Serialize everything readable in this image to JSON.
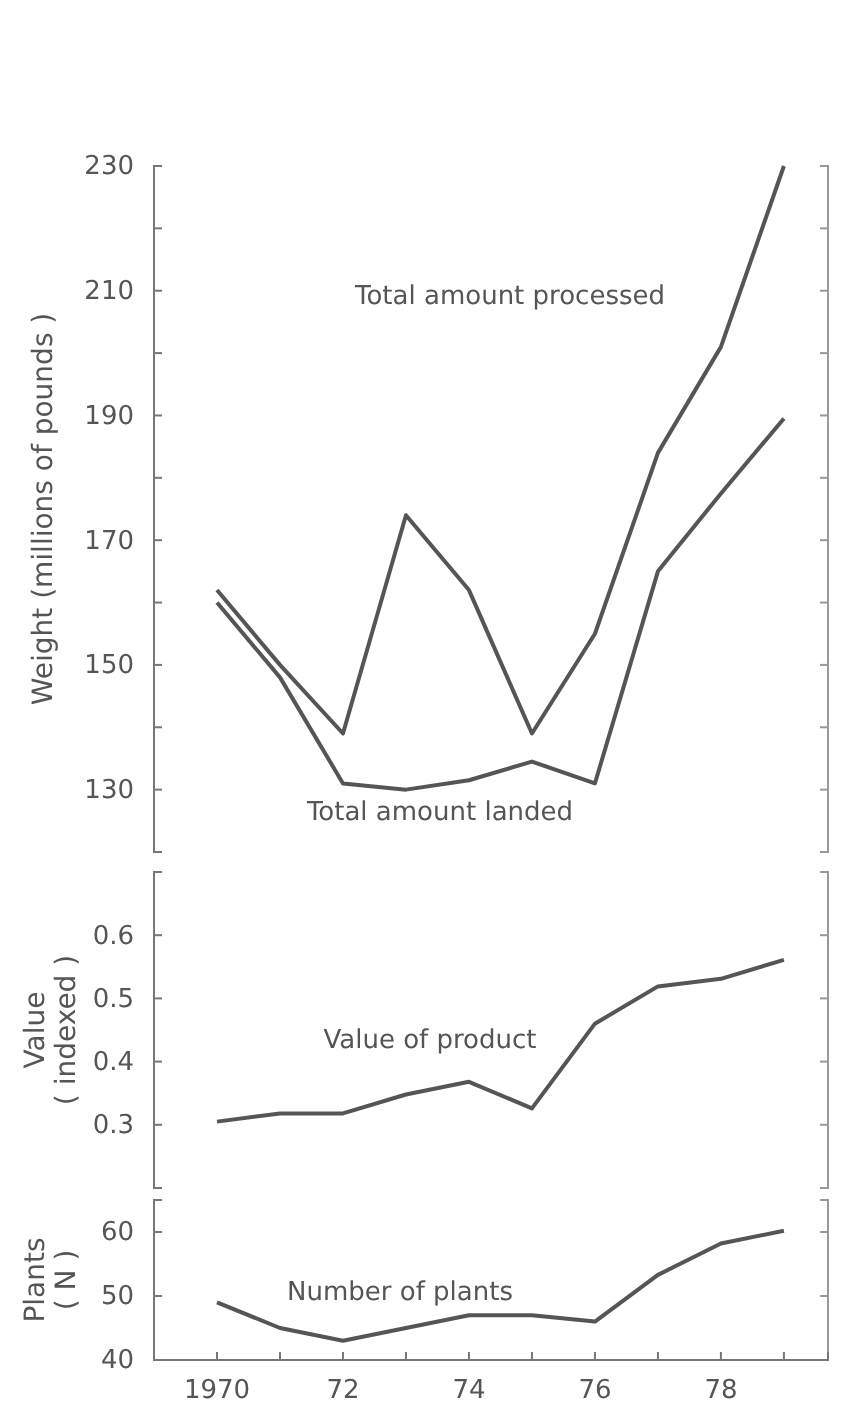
{
  "chart_data": [
    {
      "type": "line",
      "ylabel": "Weight (millions of pounds )",
      "x": [
        1970,
        1971,
        1972,
        1973,
        1974,
        1975,
        1976,
        1977,
        1978,
        1979
      ],
      "xlim": [
        1969,
        1979.7
      ],
      "ylim": [
        120,
        230
      ],
      "yticks": [
        {
          "value": 120,
          "label": null
        },
        130,
        {
          "value": 140,
          "label": null
        },
        150,
        {
          "value": 160,
          "label": null
        },
        170,
        {
          "value": 180,
          "label": null
        },
        190,
        {
          "value": 200,
          "label": null
        },
        210,
        {
          "value": 220,
          "label": null
        },
        230
      ],
      "tick_labels": "y",
      "grid": false,
      "series": [
        {
          "name": "Total amount processed",
          "color": "#555555",
          "values": [
            162,
            150,
            139,
            174,
            162,
            139,
            155,
            184,
            201,
            230
          ]
        },
        {
          "name": "Total amount landed",
          "color": "#555555",
          "values": [
            160,
            148,
            131,
            130,
            131.5,
            134.5,
            131,
            165,
            177.5,
            189.5
          ]
        }
      ]
    },
    {
      "type": "line",
      "ylabel": "Value\n( indexed )",
      "x": [
        1970,
        1971,
        1972,
        1973,
        1974,
        1975,
        1976,
        1977,
        1978,
        1979
      ],
      "xlim": [
        1969,
        1979.7
      ],
      "ylim": [
        0.2,
        0.7
      ],
      "yticks": [
        {
          "value": 0.2,
          "label": null
        },
        0.3,
        0.4,
        0.5,
        0.6,
        {
          "value": 0.7,
          "label": null
        }
      ],
      "tick_labels": "y",
      "grid": false,
      "series": [
        {
          "name": "Value of product",
          "color": "#555555",
          "values": [
            0.305,
            0.318,
            0.318,
            0.348,
            0.368,
            0.326,
            0.46,
            0.519,
            0.531,
            0.561
          ]
        }
      ]
    },
    {
      "type": "line",
      "ylabel": "Plants\n( N )",
      "x": [
        1970,
        1971,
        1972,
        1973,
        1974,
        1975,
        1976,
        1977,
        1978,
        1979
      ],
      "xlim": [
        1969,
        1979.7
      ],
      "ylim": [
        40,
        65
      ],
      "yticks": [
        40,
        50,
        60
      ],
      "xticks": [
        1970,
        {
          "value": 1971,
          "label": null
        },
        {
          "value": 1972,
          "label": "72"
        },
        {
          "value": 1973,
          "label": null
        },
        {
          "value": 1974,
          "label": "74"
        },
        {
          "value": 1975,
          "label": null
        },
        {
          "value": 1976,
          "label": "76"
        },
        {
          "value": 1977,
          "label": null
        },
        {
          "value": 1978,
          "label": "78"
        },
        {
          "value": 1979,
          "label": null
        }
      ],
      "grid": false,
      "series": [
        {
          "name": "Number of plants",
          "color": "#555555",
          "values": [
            49,
            45,
            43,
            45,
            47,
            47,
            46,
            53.3,
            58.2,
            60.2
          ]
        }
      ]
    }
  ]
}
